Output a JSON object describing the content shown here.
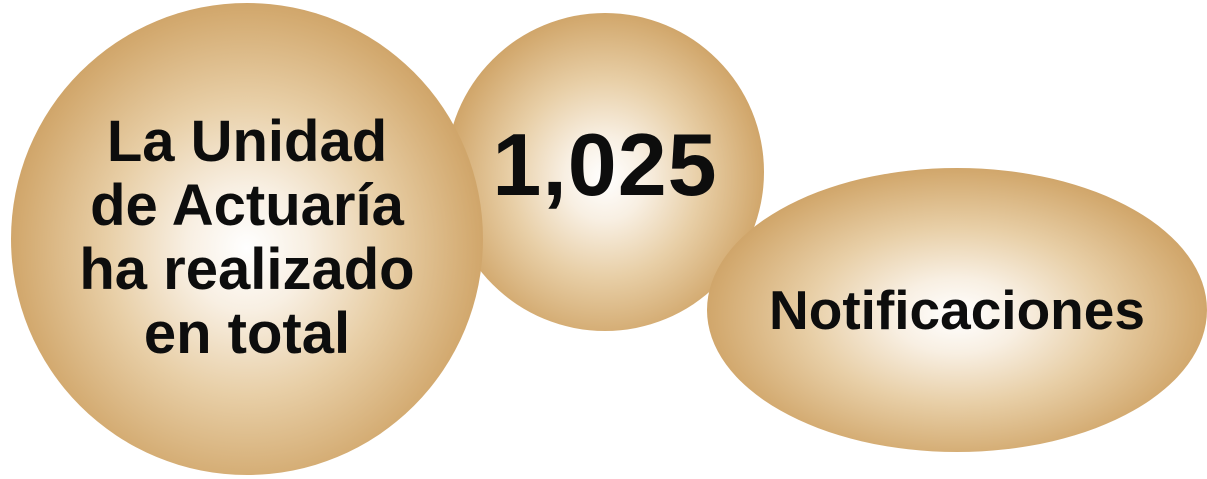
{
  "statement": {
    "lines": [
      "La Unidad",
      "de Actuaría",
      "ha realizado",
      "en total"
    ]
  },
  "count": {
    "value": "1,025"
  },
  "unit": {
    "label": "Notificaciones"
  },
  "colors": {
    "bubble_center": "#ffffff",
    "bubble_edge": "#b0803f",
    "text": "#0d0d0d",
    "background": "#ffffff"
  }
}
